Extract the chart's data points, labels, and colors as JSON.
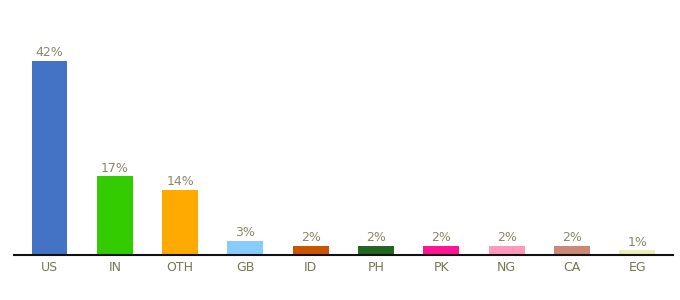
{
  "categories": [
    "US",
    "IN",
    "OTH",
    "GB",
    "ID",
    "PH",
    "PK",
    "NG",
    "CA",
    "EG"
  ],
  "values": [
    42,
    17,
    14,
    3,
    2,
    2,
    2,
    2,
    2,
    1
  ],
  "bar_colors": [
    "#4472c4",
    "#33cc00",
    "#ffaa00",
    "#88ccff",
    "#cc5500",
    "#226622",
    "#ff1493",
    "#ff99bb",
    "#cc8877",
    "#eeeebb"
  ],
  "label_color": "#888866",
  "label_fontsize": 9,
  "tick_fontsize": 9,
  "tick_color": "#777755",
  "ylim": [
    0,
    50
  ],
  "background_color": "#ffffff"
}
